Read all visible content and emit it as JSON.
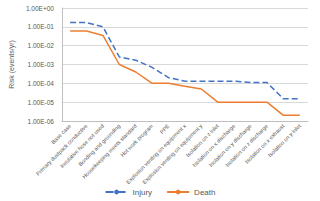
{
  "chart_data": {
    "type": "line",
    "y_label": "Risk (events/yr)",
    "categories": [
      "Base case",
      "Primary dustpack conductive",
      "Insulative hose not used",
      "Bonding and grounding",
      "Housekeeping meets standard",
      "Hot work program",
      "PPE",
      "Explosion venting on equipment x",
      "Explosion venting on equipment y",
      "Isolation on z inlet",
      "Isolation on x discharge",
      "Isolation on y discharge",
      "Isolation on z discharge",
      "Isolation on x exhaust",
      "Isolation on y inlet"
    ],
    "series": [
      {
        "name": "Injury",
        "color": "#4472c4",
        "line_style": "dashed",
        "marker": "none",
        "values": [
          0.17,
          0.17,
          0.1,
          0.0025,
          0.0017,
          0.0007,
          0.0002,
          0.00013,
          0.00013,
          0.00013,
          0.00013,
          0.00011,
          0.00011,
          1.5e-05,
          1.5e-05
        ]
      },
      {
        "name": "Death",
        "color": "#ed7d31",
        "line_style": "solid",
        "marker": "none",
        "values": [
          0.06,
          0.06,
          0.035,
          0.001,
          0.0004,
          0.0001,
          0.0001,
          7e-05,
          5e-05,
          1e-05,
          1e-05,
          1e-05,
          1e-05,
          2e-06,
          2e-06
        ]
      }
    ],
    "log": "y",
    "ylim": [
      1e-06,
      1
    ],
    "yticks": [
      {
        "value": 1e-06,
        "label": "1.00E-06"
      },
      {
        "value": 1e-05,
        "label": "1.00E-05"
      },
      {
        "value": 0.0001,
        "label": "1.00E-04"
      },
      {
        "value": 0.001,
        "label": "1.00E-03"
      },
      {
        "value": 0.01,
        "label": "1.00E-02"
      },
      {
        "value": 0.1,
        "label": "1.00E-01"
      },
      {
        "value": 1,
        "label": "1.00E+00"
      }
    ],
    "grid": true,
    "legend": "bottom"
  }
}
